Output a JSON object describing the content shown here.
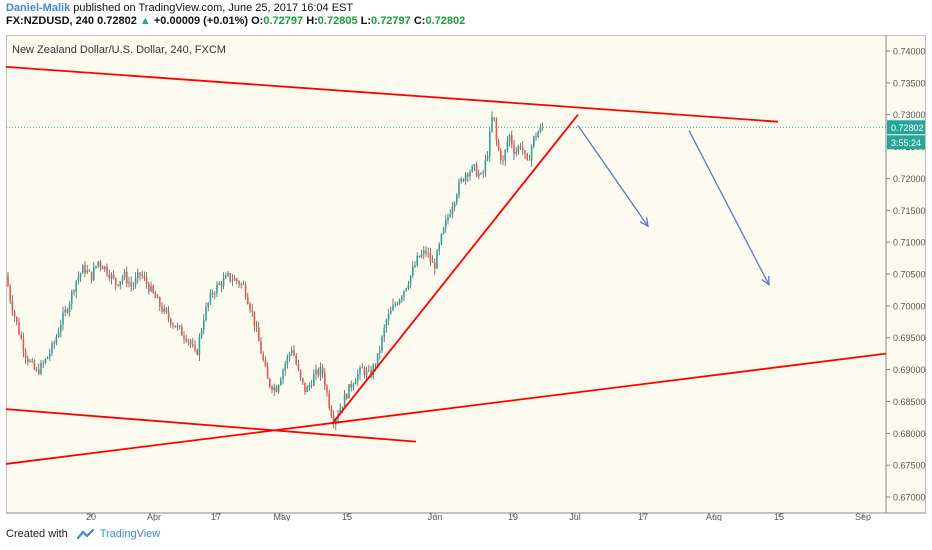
{
  "header": {
    "author": "Daniel-Malik",
    "published_text": " published on TradingView.com, June 25, 2017 16:04 EST",
    "symbol": "FX:NZDUSD, 240",
    "last": "0.72802",
    "change": "+0.00009 (+0.01%)",
    "o_label": "O:",
    "o_value": "0.72797",
    "h_label": "H:",
    "h_value": "0.72805",
    "l_label": "L:",
    "l_value": "0.72797",
    "c_label": "C:",
    "c_value": "0.72802"
  },
  "footer": {
    "created_with": "Created with",
    "brand": "TradingView"
  },
  "chart_data": {
    "type": "candlestick",
    "title": "New Zealand Dollar/U.S. Dollar, 240, FXCM",
    "ylim": [
      0.6675,
      0.7425
    ],
    "y_ticks": [
      "0.74000",
      "0.73500",
      "0.73000",
      "0.72500",
      "0.72000",
      "0.71500",
      "0.71000",
      "0.70500",
      "0.70000",
      "0.69500",
      "0.69000",
      "0.68500",
      "0.68000",
      "0.67500",
      "0.67000"
    ],
    "x_ticks": [
      "20",
      "Apr",
      "17",
      "May",
      "15",
      "Jun",
      "19",
      "Jul",
      "17",
      "Aug",
      "15",
      "Sep"
    ],
    "last_price_label": "0.72802",
    "countdown_label": "3:55:24",
    "colors": {
      "up": "#26a69a",
      "down": "#ef5350",
      "trendline": "#ff0000",
      "arrow": "#5b78c6",
      "price_line": "#26a69a"
    },
    "price_path": [
      [
        0,
        0.7048
      ],
      [
        5,
        0.7005
      ],
      [
        12,
        0.6965
      ],
      [
        20,
        0.6922
      ],
      [
        30,
        0.6895
      ],
      [
        38,
        0.691
      ],
      [
        48,
        0.694
      ],
      [
        55,
        0.6975
      ],
      [
        62,
        0.7
      ],
      [
        70,
        0.704
      ],
      [
        78,
        0.706
      ],
      [
        85,
        0.7045
      ],
      [
        92,
        0.707
      ],
      [
        100,
        0.7058
      ],
      [
        110,
        0.7035
      ],
      [
        118,
        0.7048
      ],
      [
        126,
        0.703
      ],
      [
        134,
        0.705
      ],
      [
        142,
        0.7032
      ],
      [
        150,
        0.701
      ],
      [
        158,
        0.699
      ],
      [
        166,
        0.6975
      ],
      [
        174,
        0.696
      ],
      [
        182,
        0.695
      ],
      [
        190,
        0.692
      ],
      [
        198,
        0.6985
      ],
      [
        206,
        0.702
      ],
      [
        214,
        0.7035
      ],
      [
        222,
        0.7045
      ],
      [
        230,
        0.704
      ],
      [
        238,
        0.703
      ],
      [
        246,
        0.699
      ],
      [
        254,
        0.6935
      ],
      [
        262,
        0.688
      ],
      [
        270,
        0.687
      ],
      [
        278,
        0.6905
      ],
      [
        286,
        0.6935
      ],
      [
        294,
        0.6885
      ],
      [
        300,
        0.6865
      ],
      [
        308,
        0.689
      ],
      [
        316,
        0.69
      ],
      [
        324,
        0.684
      ],
      [
        328,
        0.682
      ],
      [
        334,
        0.684
      ],
      [
        340,
        0.686
      ],
      [
        348,
        0.6885
      ],
      [
        356,
        0.69
      ],
      [
        364,
        0.689
      ],
      [
        372,
        0.692
      ],
      [
        380,
        0.6975
      ],
      [
        388,
        0.7
      ],
      [
        396,
        0.702
      ],
      [
        404,
        0.7045
      ],
      [
        412,
        0.7075
      ],
      [
        420,
        0.7085
      ],
      [
        428,
        0.706
      ],
      [
        436,
        0.711
      ],
      [
        444,
        0.715
      ],
      [
        452,
        0.7185
      ],
      [
        460,
        0.721
      ],
      [
        468,
        0.7215
      ],
      [
        476,
        0.72
      ],
      [
        482,
        0.7245
      ],
      [
        487,
        0.7305
      ],
      [
        491,
        0.725
      ],
      [
        497,
        0.7225
      ],
      [
        503,
        0.727
      ],
      [
        509,
        0.724
      ],
      [
        515,
        0.7255
      ],
      [
        521,
        0.722
      ],
      [
        527,
        0.726
      ],
      [
        533,
        0.7275
      ],
      [
        537,
        0.728
      ]
    ],
    "annotations": {
      "trendlines": [
        {
          "x1": 0,
          "y1": 0.7375,
          "x2": 772,
          "y2": 0.7289
        },
        {
          "x1": 326,
          "y1": 0.6815,
          "x2": 572,
          "y2": 0.73
        },
        {
          "x1": 0,
          "y1": 0.6752,
          "x2": 880,
          "y2": 0.6925
        },
        {
          "x1": 0,
          "y1": 0.6838,
          "x2": 410,
          "y2": 0.6787
        }
      ],
      "arrows": [
        {
          "x1": 572,
          "y1": 0.7283,
          "x2": 642,
          "y2": 0.7125
        },
        {
          "x1": 683,
          "y1": 0.7275,
          "x2": 763,
          "y2": 0.7033
        }
      ]
    }
  }
}
